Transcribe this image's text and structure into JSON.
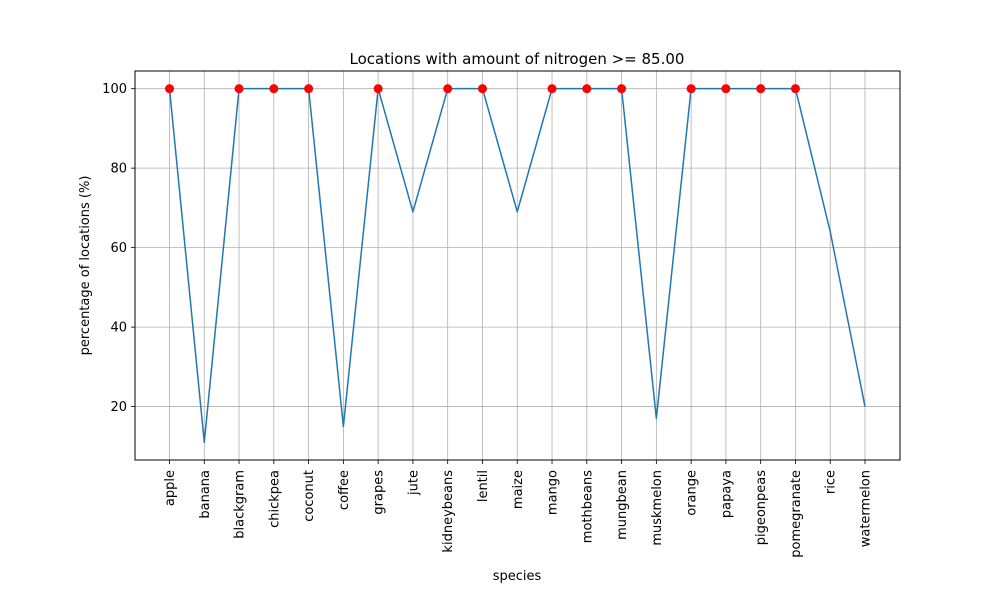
{
  "chart_data": {
    "type": "line",
    "title": "Locations with amount of nitrogen >= 85.00",
    "xlabel": "species",
    "ylabel": "percentage of locations (%)",
    "categories": [
      "apple",
      "banana",
      "blackgram",
      "chickpea",
      "coconut",
      "coffee",
      "grapes",
      "jute",
      "kidneybeans",
      "lentil",
      "maize",
      "mango",
      "mothbeans",
      "mungbean",
      "muskmelon",
      "orange",
      "papaya",
      "pigeonpeas",
      "pomegranate",
      "rice",
      "watermelon"
    ],
    "series": [
      {
        "values": [
          100,
          11,
          100,
          100,
          100,
          15,
          100,
          69,
          100,
          100,
          69,
          100,
          100,
          100,
          17,
          100,
          100,
          100,
          100,
          64,
          20
        ],
        "color": "#1f77b4"
      }
    ],
    "highlight_markers": {
      "color": "#ff0000",
      "values": [
        100,
        null,
        100,
        100,
        100,
        null,
        100,
        null,
        100,
        100,
        null,
        100,
        100,
        100,
        null,
        100,
        100,
        100,
        100,
        null,
        null
      ]
    },
    "yticks": [
      20,
      40,
      60,
      80,
      100
    ],
    "ylim": [
      6.55,
      104.45
    ],
    "grid": true,
    "legend": "none"
  }
}
